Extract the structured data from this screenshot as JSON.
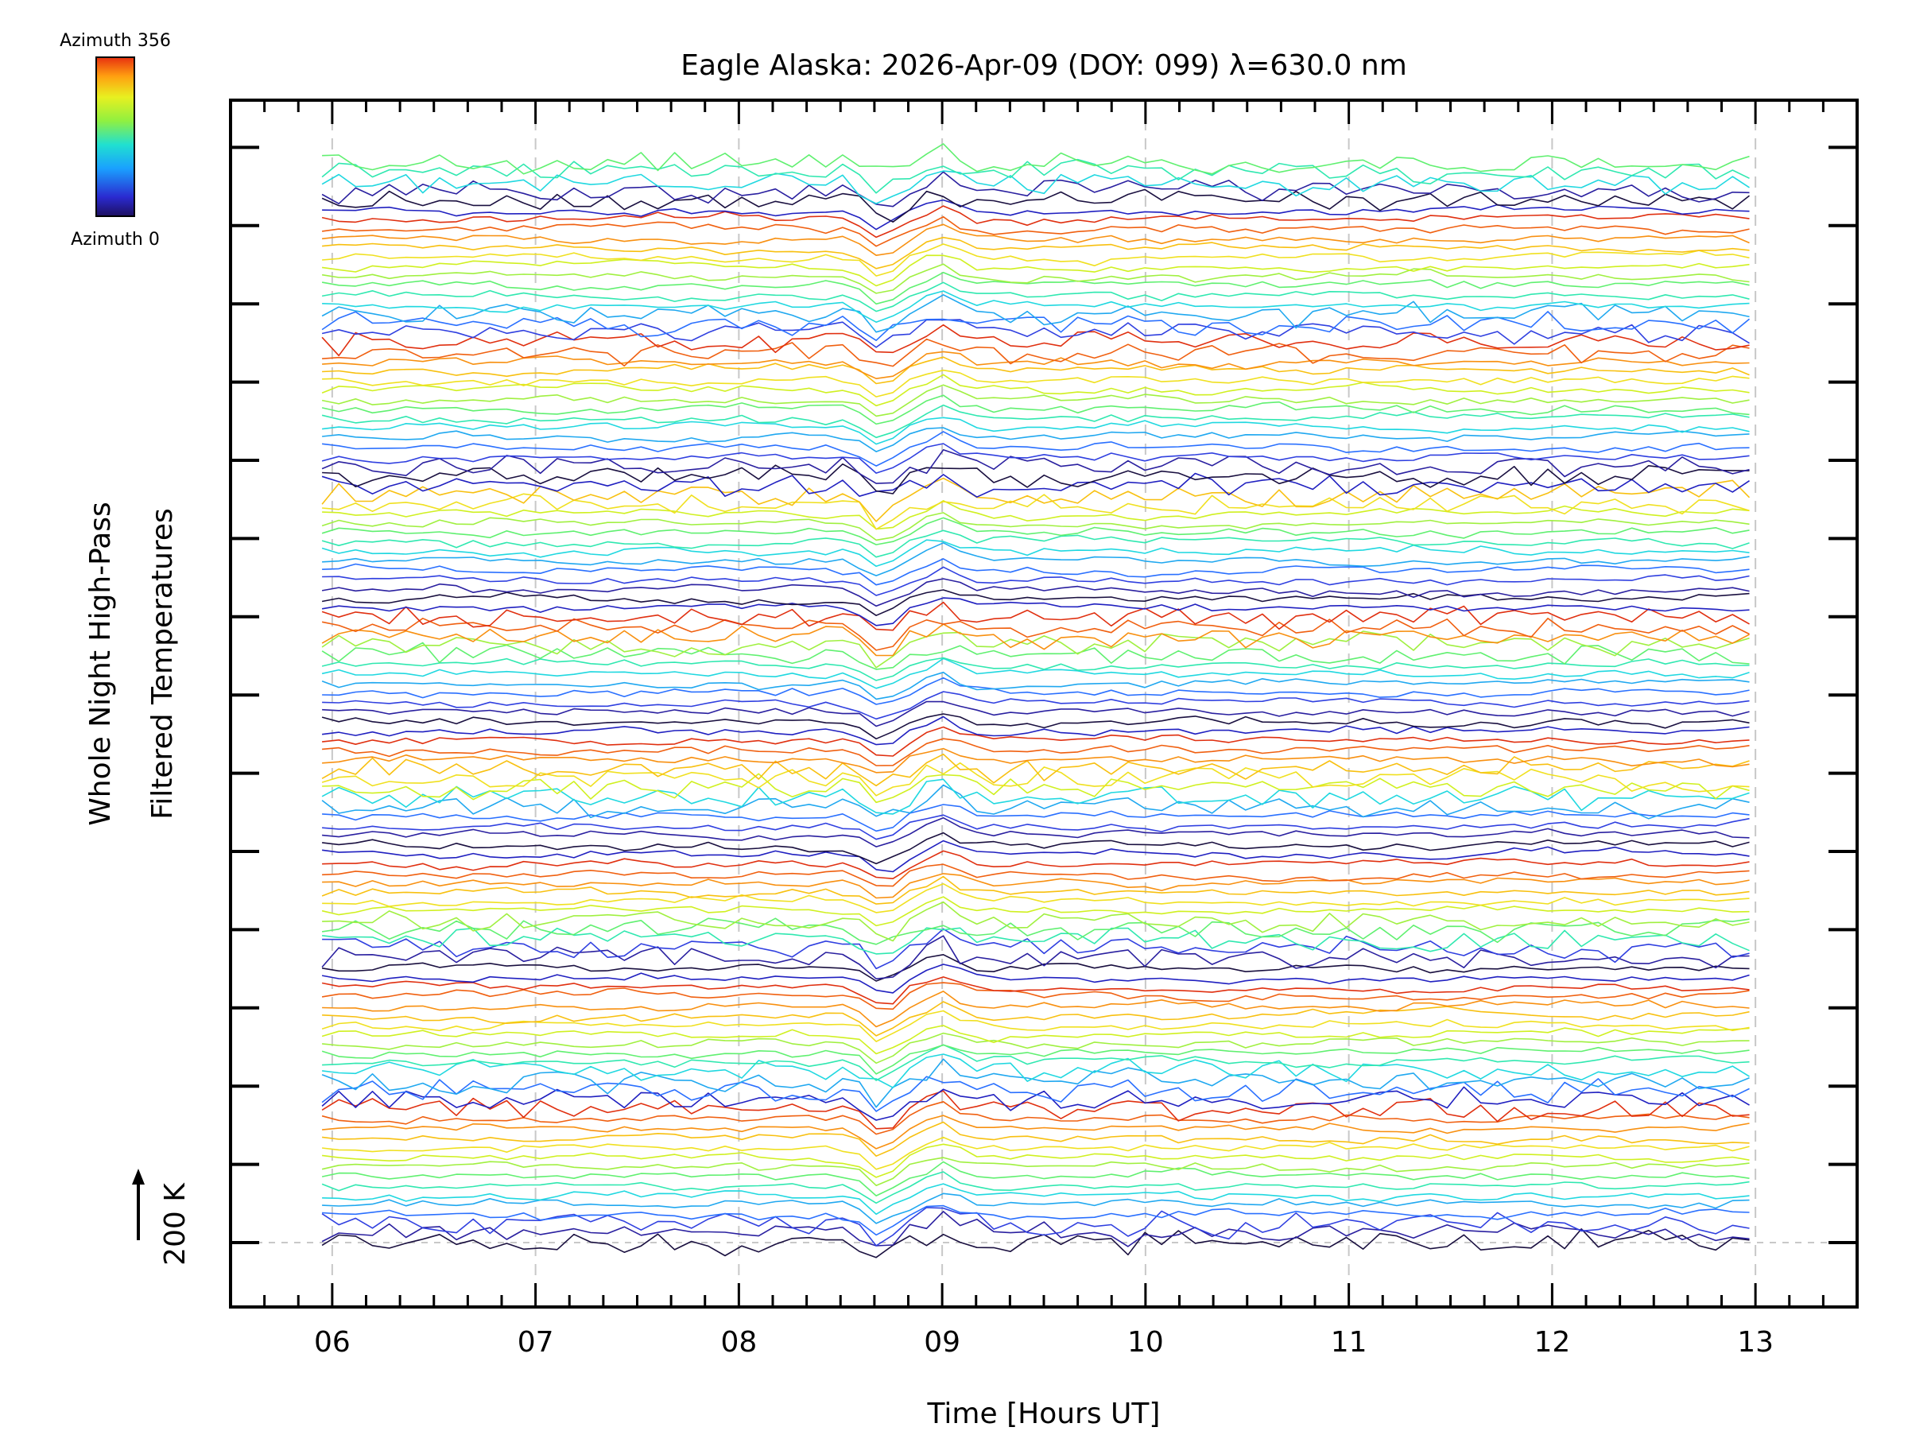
{
  "chart_data": {
    "type": "line",
    "title": "Eagle Alaska: 2026-Apr-09 (DOY: 099) λ=630.0 nm",
    "xlabel": "Time [Hours UT]",
    "ylabel_line1": "Whole Night High-Pass",
    "ylabel_line2": "Filtered Temperatures",
    "scale_label": "200 K",
    "xlim": [
      5.5,
      13.5
    ],
    "x_ticks": [
      "06",
      "07",
      "08",
      "09",
      "10",
      "11",
      "12",
      "13"
    ],
    "x_tick_values": [
      6,
      7,
      8,
      9,
      10,
      11,
      12,
      13
    ],
    "y_major_tick_count": 15,
    "x_range": [
      5.95,
      12.97
    ],
    "n_traces": 115,
    "n_azimuth_cycles": 7,
    "traces_per_cycle": 16,
    "trace_offset_description": "stacked traces, each offset by a constant step; arrow indicates 200 K scale",
    "dip_event_time": 8.7,
    "grid": true,
    "colorbar": {
      "label_top": "Azimuth 356",
      "label_bottom": "Azimuth 0",
      "min": 0,
      "max": 356,
      "colormap": "jet-like (dark blue to red)"
    },
    "colors": {
      "grid": "#c8c8c8",
      "axis": "#000000"
    }
  }
}
